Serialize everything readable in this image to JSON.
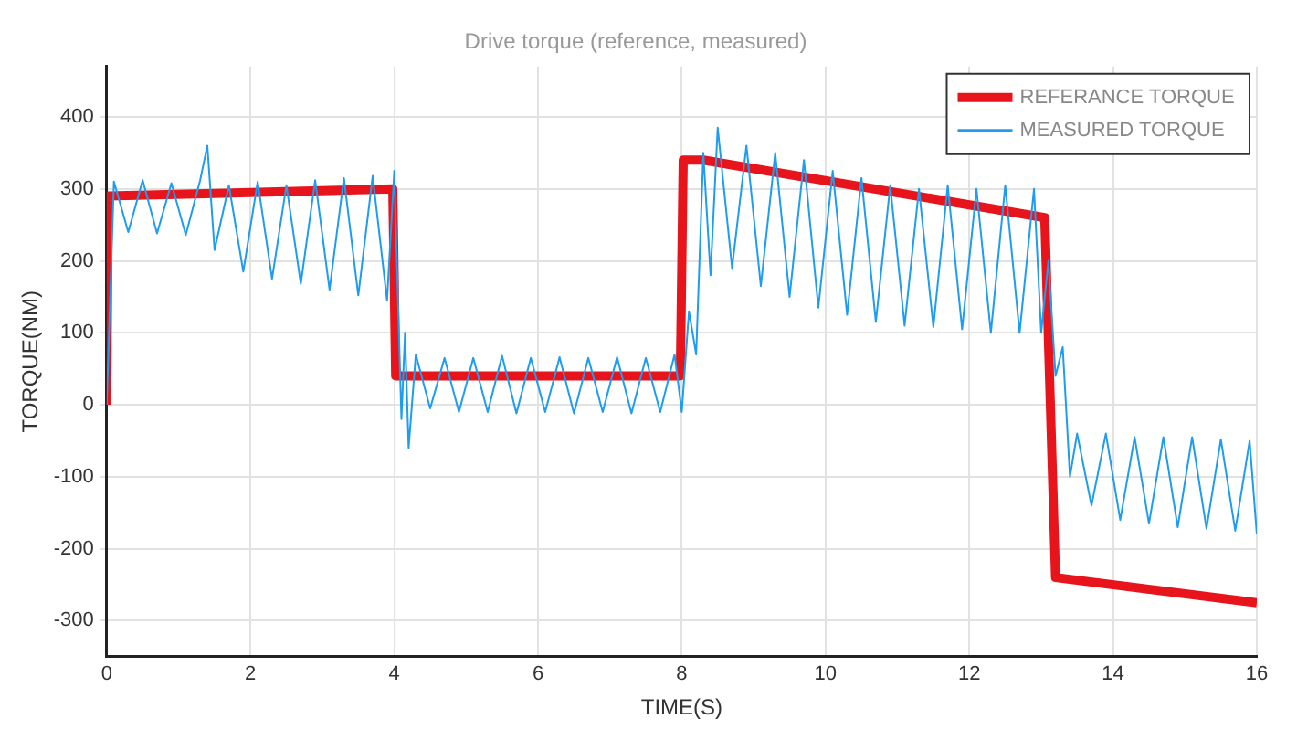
{
  "chart_data": {
    "type": "line",
    "title": "Drive torque (reference, measured)",
    "xlabel": "TIME(S)",
    "ylabel": "TORQUE(NM)",
    "xlim": [
      0,
      16
    ],
    "xticks": [
      0,
      2,
      4,
      6,
      8,
      10,
      12,
      14,
      16
    ],
    "ylim": [
      -350,
      470
    ],
    "yticks": [
      -300,
      -200,
      -100,
      0,
      100,
      200,
      300,
      400
    ],
    "grid": true,
    "legend": "top right",
    "marker": "none",
    "line_style": "solid",
    "series": [
      {
        "name": "REFERANCE TORQUE",
        "color": "#e8141c",
        "x": [
          0,
          0.02,
          3.98,
          4.02,
          7.98,
          8.02,
          8.3,
          13.05,
          13.2,
          16
        ],
        "values": [
          0,
          290,
          300,
          40,
          40,
          340,
          340,
          260,
          -240,
          -275
        ]
      },
      {
        "name": "MEASURED TORQUE",
        "color": "#1e9cf0",
        "x": [
          0,
          0.1,
          0.3,
          0.5,
          0.7,
          0.9,
          1.1,
          1.3,
          1.4,
          1.5,
          1.7,
          1.9,
          2.1,
          2.3,
          2.5,
          2.7,
          2.9,
          3.1,
          3.3,
          3.5,
          3.7,
          3.9,
          4.0,
          4.1,
          4.15,
          4.2,
          4.3,
          4.5,
          4.7,
          4.9,
          5.1,
          5.3,
          5.5,
          5.7,
          5.9,
          6.1,
          6.3,
          6.5,
          6.7,
          6.9,
          7.1,
          7.3,
          7.5,
          7.7,
          7.9,
          8.0,
          8.1,
          8.2,
          8.3,
          8.4,
          8.5,
          8.7,
          8.9,
          9.1,
          9.3,
          9.5,
          9.7,
          9.9,
          10.1,
          10.3,
          10.5,
          10.7,
          10.9,
          11.1,
          11.3,
          11.5,
          11.7,
          11.9,
          12.1,
          12.3,
          12.5,
          12.7,
          12.9,
          13.0,
          13.1,
          13.2,
          13.3,
          13.4,
          13.5,
          13.7,
          13.9,
          14.1,
          14.3,
          14.5,
          14.7,
          14.9,
          15.1,
          15.3,
          15.5,
          15.7,
          15.9,
          16.0
        ],
        "values": [
          0,
          310,
          240,
          312,
          238,
          308,
          236,
          312,
          360,
          215,
          305,
          185,
          310,
          175,
          305,
          168,
          312,
          160,
          315,
          152,
          318,
          145,
          325,
          -20,
          100,
          -60,
          70,
          -5,
          65,
          -10,
          65,
          -10,
          68,
          -12,
          65,
          -10,
          66,
          -12,
          65,
          -10,
          66,
          -12,
          65,
          -10,
          70,
          -10,
          130,
          70,
          350,
          180,
          385,
          190,
          360,
          165,
          350,
          150,
          340,
          135,
          325,
          125,
          315,
          115,
          305,
          110,
          300,
          108,
          305,
          105,
          300,
          100,
          305,
          100,
          300,
          100,
          200,
          40,
          80,
          -100,
          -40,
          -140,
          -40,
          -160,
          -45,
          -165,
          -45,
          -170,
          -45,
          -172,
          -48,
          -175,
          -50,
          -180
        ]
      }
    ]
  }
}
